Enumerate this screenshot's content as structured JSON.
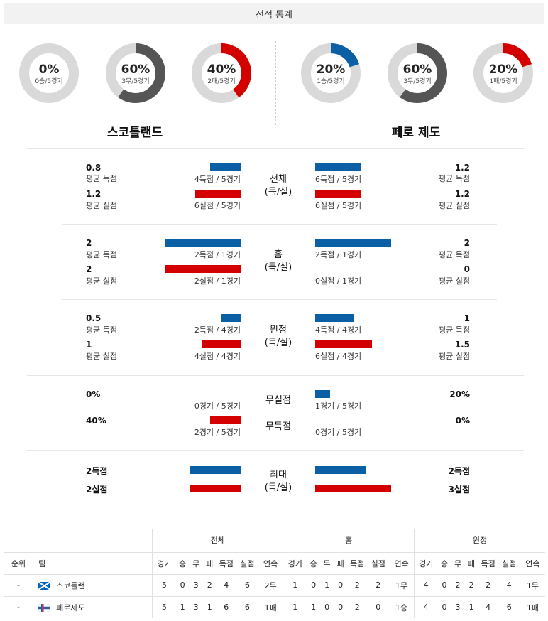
{
  "header": {
    "title": "전적 통계"
  },
  "donuts": {
    "left": [
      {
        "pct": "0%",
        "sub": "0승/5경기",
        "color": "#0b5fa5",
        "fill": 0
      },
      {
        "pct": "60%",
        "sub": "3무/5경기",
        "color": "#555555",
        "fill": 0.6
      },
      {
        "pct": "40%",
        "sub": "2패/5경기",
        "color": "#d40000",
        "fill": 0.4
      }
    ],
    "right": [
      {
        "pct": "20%",
        "sub": "1승/5경기",
        "color": "#0b5fa5",
        "fill": 0.2
      },
      {
        "pct": "60%",
        "sub": "3무/5경기",
        "color": "#555555",
        "fill": 0.6
      },
      {
        "pct": "20%",
        "sub": "1패/5경기",
        "color": "#d40000",
        "fill": 0.2
      }
    ]
  },
  "teams": {
    "left": "스코틀랜드",
    "right": "페로 제도"
  },
  "stats": {
    "overall": {
      "label1": "전체",
      "label2": "(득/실)",
      "left": {
        "scored": "0.8",
        "scored_lbl": "평균 득점",
        "scored_note": "4득점 / 5경기",
        "scored_frac": 0.4,
        "conceded": "1.2",
        "conceded_lbl": "평균 실점",
        "conceded_note": "6실점 / 5경기",
        "conceded_frac": 0.6
      },
      "right": {
        "scored": "1.2",
        "scored_lbl": "평균 득점",
        "scored_note": "6득점 / 5경기",
        "scored_frac": 0.6,
        "conceded": "1.2",
        "conceded_lbl": "평균 실점",
        "conceded_note": "6실점 / 5경기",
        "conceded_frac": 0.6
      }
    },
    "home": {
      "label1": "홈",
      "label2": "(득/실)",
      "left": {
        "scored": "2",
        "scored_lbl": "평균 득점",
        "scored_note": "2득점 / 1경기",
        "scored_frac": 1.0,
        "conceded": "2",
        "conceded_lbl": "평균 실점",
        "conceded_note": "2실점 / 1경기",
        "conceded_frac": 1.0
      },
      "right": {
        "scored": "2",
        "scored_lbl": "평균 득점",
        "scored_note": "2득점 / 1경기",
        "scored_frac": 1.0,
        "conceded": "0",
        "conceded_lbl": "평균 실점",
        "conceded_note": "0실점 / 1경기",
        "conceded_frac": 0
      }
    },
    "away": {
      "label1": "원정",
      "label2": "(득/실)",
      "left": {
        "scored": "0.5",
        "scored_lbl": "평균 득점",
        "scored_note": "2득점 / 4경기",
        "scored_frac": 0.25,
        "conceded": "1",
        "conceded_lbl": "평균 실점",
        "conceded_note": "4실점 / 4경기",
        "conceded_frac": 0.5
      },
      "right": {
        "scored": "1",
        "scored_lbl": "평균 득점",
        "scored_note": "4득점 / 4경기",
        "scored_frac": 0.5,
        "conceded": "1.5",
        "conceded_lbl": "평균 실점",
        "conceded_note": "6실점 / 4경기",
        "conceded_frac": 0.75
      }
    },
    "clean": {
      "label_clean": "무실점",
      "label_noscore": "무득점",
      "left": {
        "clean_pct": "0%",
        "clean_note": "0경기 / 5경기",
        "clean_frac": 0,
        "noscore_pct": "40%",
        "noscore_note": "2경기 / 5경기",
        "noscore_frac": 0.4
      },
      "right": {
        "clean_pct": "20%",
        "clean_note": "1경기 / 5경기",
        "clean_frac": 0.2,
        "noscore_pct": "0%",
        "noscore_note": "0경기 / 5경기",
        "noscore_frac": 0
      }
    },
    "max": {
      "label1": "최대",
      "label2": "(득/실)",
      "left": {
        "scored": "2득점",
        "scored_frac": 0.67,
        "conceded": "2실점",
        "conceded_frac": 0.67
      },
      "right": {
        "scored": "2득점",
        "scored_frac": 0.67,
        "conceded": "3실점",
        "conceded_frac": 1.0
      }
    }
  },
  "standings": {
    "groups": [
      "전체",
      "홈",
      "원정"
    ],
    "col_rank": "순위",
    "col_team": "팀",
    "sub_cols": [
      "경기",
      "승",
      "무",
      "패",
      "득점",
      "실점",
      "연속"
    ],
    "rows": [
      {
        "rank": "-",
        "team": "스코틀랜",
        "flag": "scotland",
        "overall": [
          "5",
          "0",
          "3",
          "2",
          "4",
          "6",
          "2무"
        ],
        "home": [
          "1",
          "0",
          "1",
          "0",
          "2",
          "2",
          "1무"
        ],
        "away": [
          "4",
          "0",
          "2",
          "2",
          "2",
          "4",
          "1무"
        ]
      },
      {
        "rank": "-",
        "team": "페로제도",
        "flag": "faroe",
        "overall": [
          "5",
          "1",
          "3",
          "1",
          "6",
          "6",
          "1패"
        ],
        "home": [
          "1",
          "1",
          "0",
          "0",
          "2",
          "0",
          "1승"
        ],
        "away": [
          "4",
          "0",
          "3",
          "1",
          "4",
          "6",
          "1패"
        ]
      }
    ]
  }
}
